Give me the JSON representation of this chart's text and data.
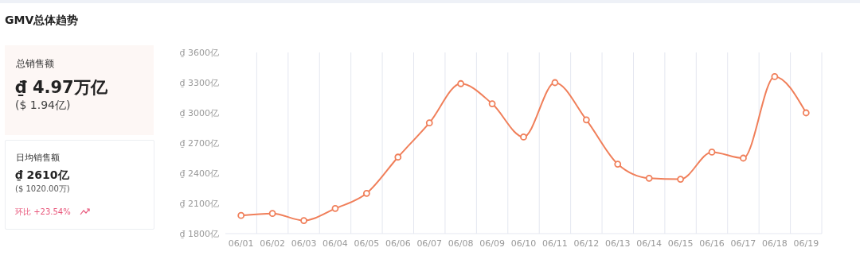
{
  "chart_data": {
    "type": "line",
    "title": "GMV总体趋势",
    "annotations": [
      "总销售额",
      "₫ 4.97万亿",
      "($ 1.94亿)",
      "日均销售额",
      "₫ 2610亿",
      "($ 1020.00万)",
      "环比 +23.54%"
    ],
    "categories": [
      "06/01",
      "06/02",
      "06/03",
      "06/04",
      "06/05",
      "06/06",
      "06/07",
      "06/08",
      "06/09",
      "06/10",
      "06/11",
      "06/12",
      "06/13",
      "06/14",
      "06/15",
      "06/16",
      "06/17",
      "06/18",
      "06/19"
    ],
    "series": [
      {
        "color": "#f07f5a",
        "values": [
          1980,
          2000,
          1930,
          2050,
          2200,
          2560,
          2900,
          3290,
          3090,
          2760,
          3300,
          2930,
          2490,
          2350,
          2340,
          2610,
          2550,
          3360,
          3000
        ]
      }
    ],
    "ylim": [
      1800,
      3600
    ],
    "yticks": [
      {
        "value": 1800,
        "label": "₫ 1800亿"
      },
      {
        "value": 2100,
        "label": "₫ 2100亿"
      },
      {
        "value": 2400,
        "label": "₫ 2400亿"
      },
      {
        "value": 2700,
        "label": "₫ 2700亿"
      },
      {
        "value": 3000,
        "label": "₫ 3000亿"
      },
      {
        "value": 3300,
        "label": "₫ 3300亿"
      },
      {
        "value": 3600,
        "label": "₫ 3600亿"
      }
    ],
    "grid": "x",
    "legend": false,
    "marker": "circle",
    "line_style": "solid"
  }
}
